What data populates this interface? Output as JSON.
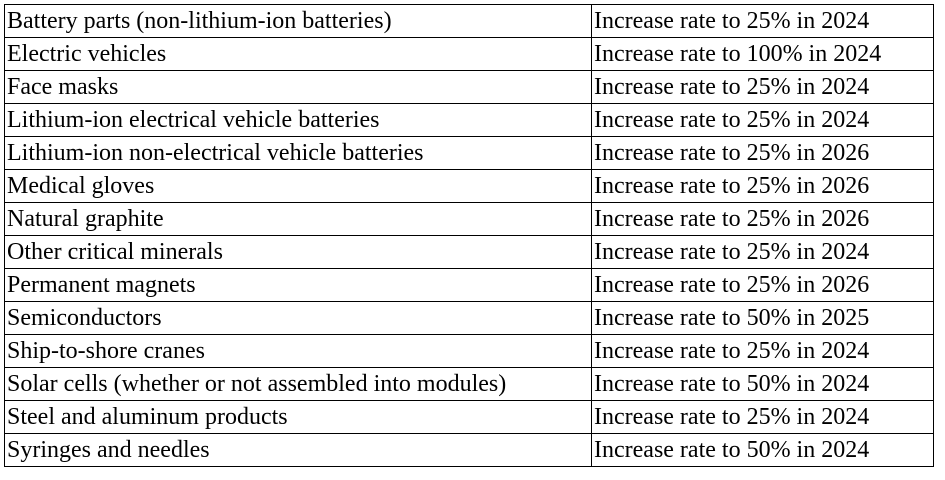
{
  "rows": [
    {
      "product": "Battery parts (non-lithium-ion batteries)",
      "action": "Increase rate to 25% in 2024"
    },
    {
      "product": "Electric vehicles",
      "action": "Increase rate to 100% in 2024"
    },
    {
      "product": "Face masks",
      "action": "Increase rate to 25% in 2024"
    },
    {
      "product": "Lithium-ion electrical vehicle batteries",
      "action": "Increase rate to 25% in 2024"
    },
    {
      "product": "Lithium-ion non-electrical vehicle batteries",
      "action": "Increase rate to 25% in 2026"
    },
    {
      "product": "Medical gloves",
      "action": "Increase rate to 25% in 2026"
    },
    {
      "product": "Natural graphite",
      "action": "Increase rate to 25% in 2026"
    },
    {
      "product": "Other critical minerals",
      "action": "Increase rate to 25% in 2024"
    },
    {
      "product": "Permanent magnets",
      "action": "Increase rate to 25% in 2026"
    },
    {
      "product": "Semiconductors",
      "action": "Increase rate to 50% in 2025"
    },
    {
      "product": "Ship-to-shore cranes",
      "action": "Increase rate to 25% in 2024"
    },
    {
      "product": "Solar cells (whether or not assembled into modules)",
      "action": "Increase rate to 50% in 2024"
    },
    {
      "product": "Steel and aluminum products",
      "action": "Increase rate to 25% in 2024"
    },
    {
      "product": "Syringes and needles",
      "action": "Increase rate to 50% in 2024"
    }
  ]
}
